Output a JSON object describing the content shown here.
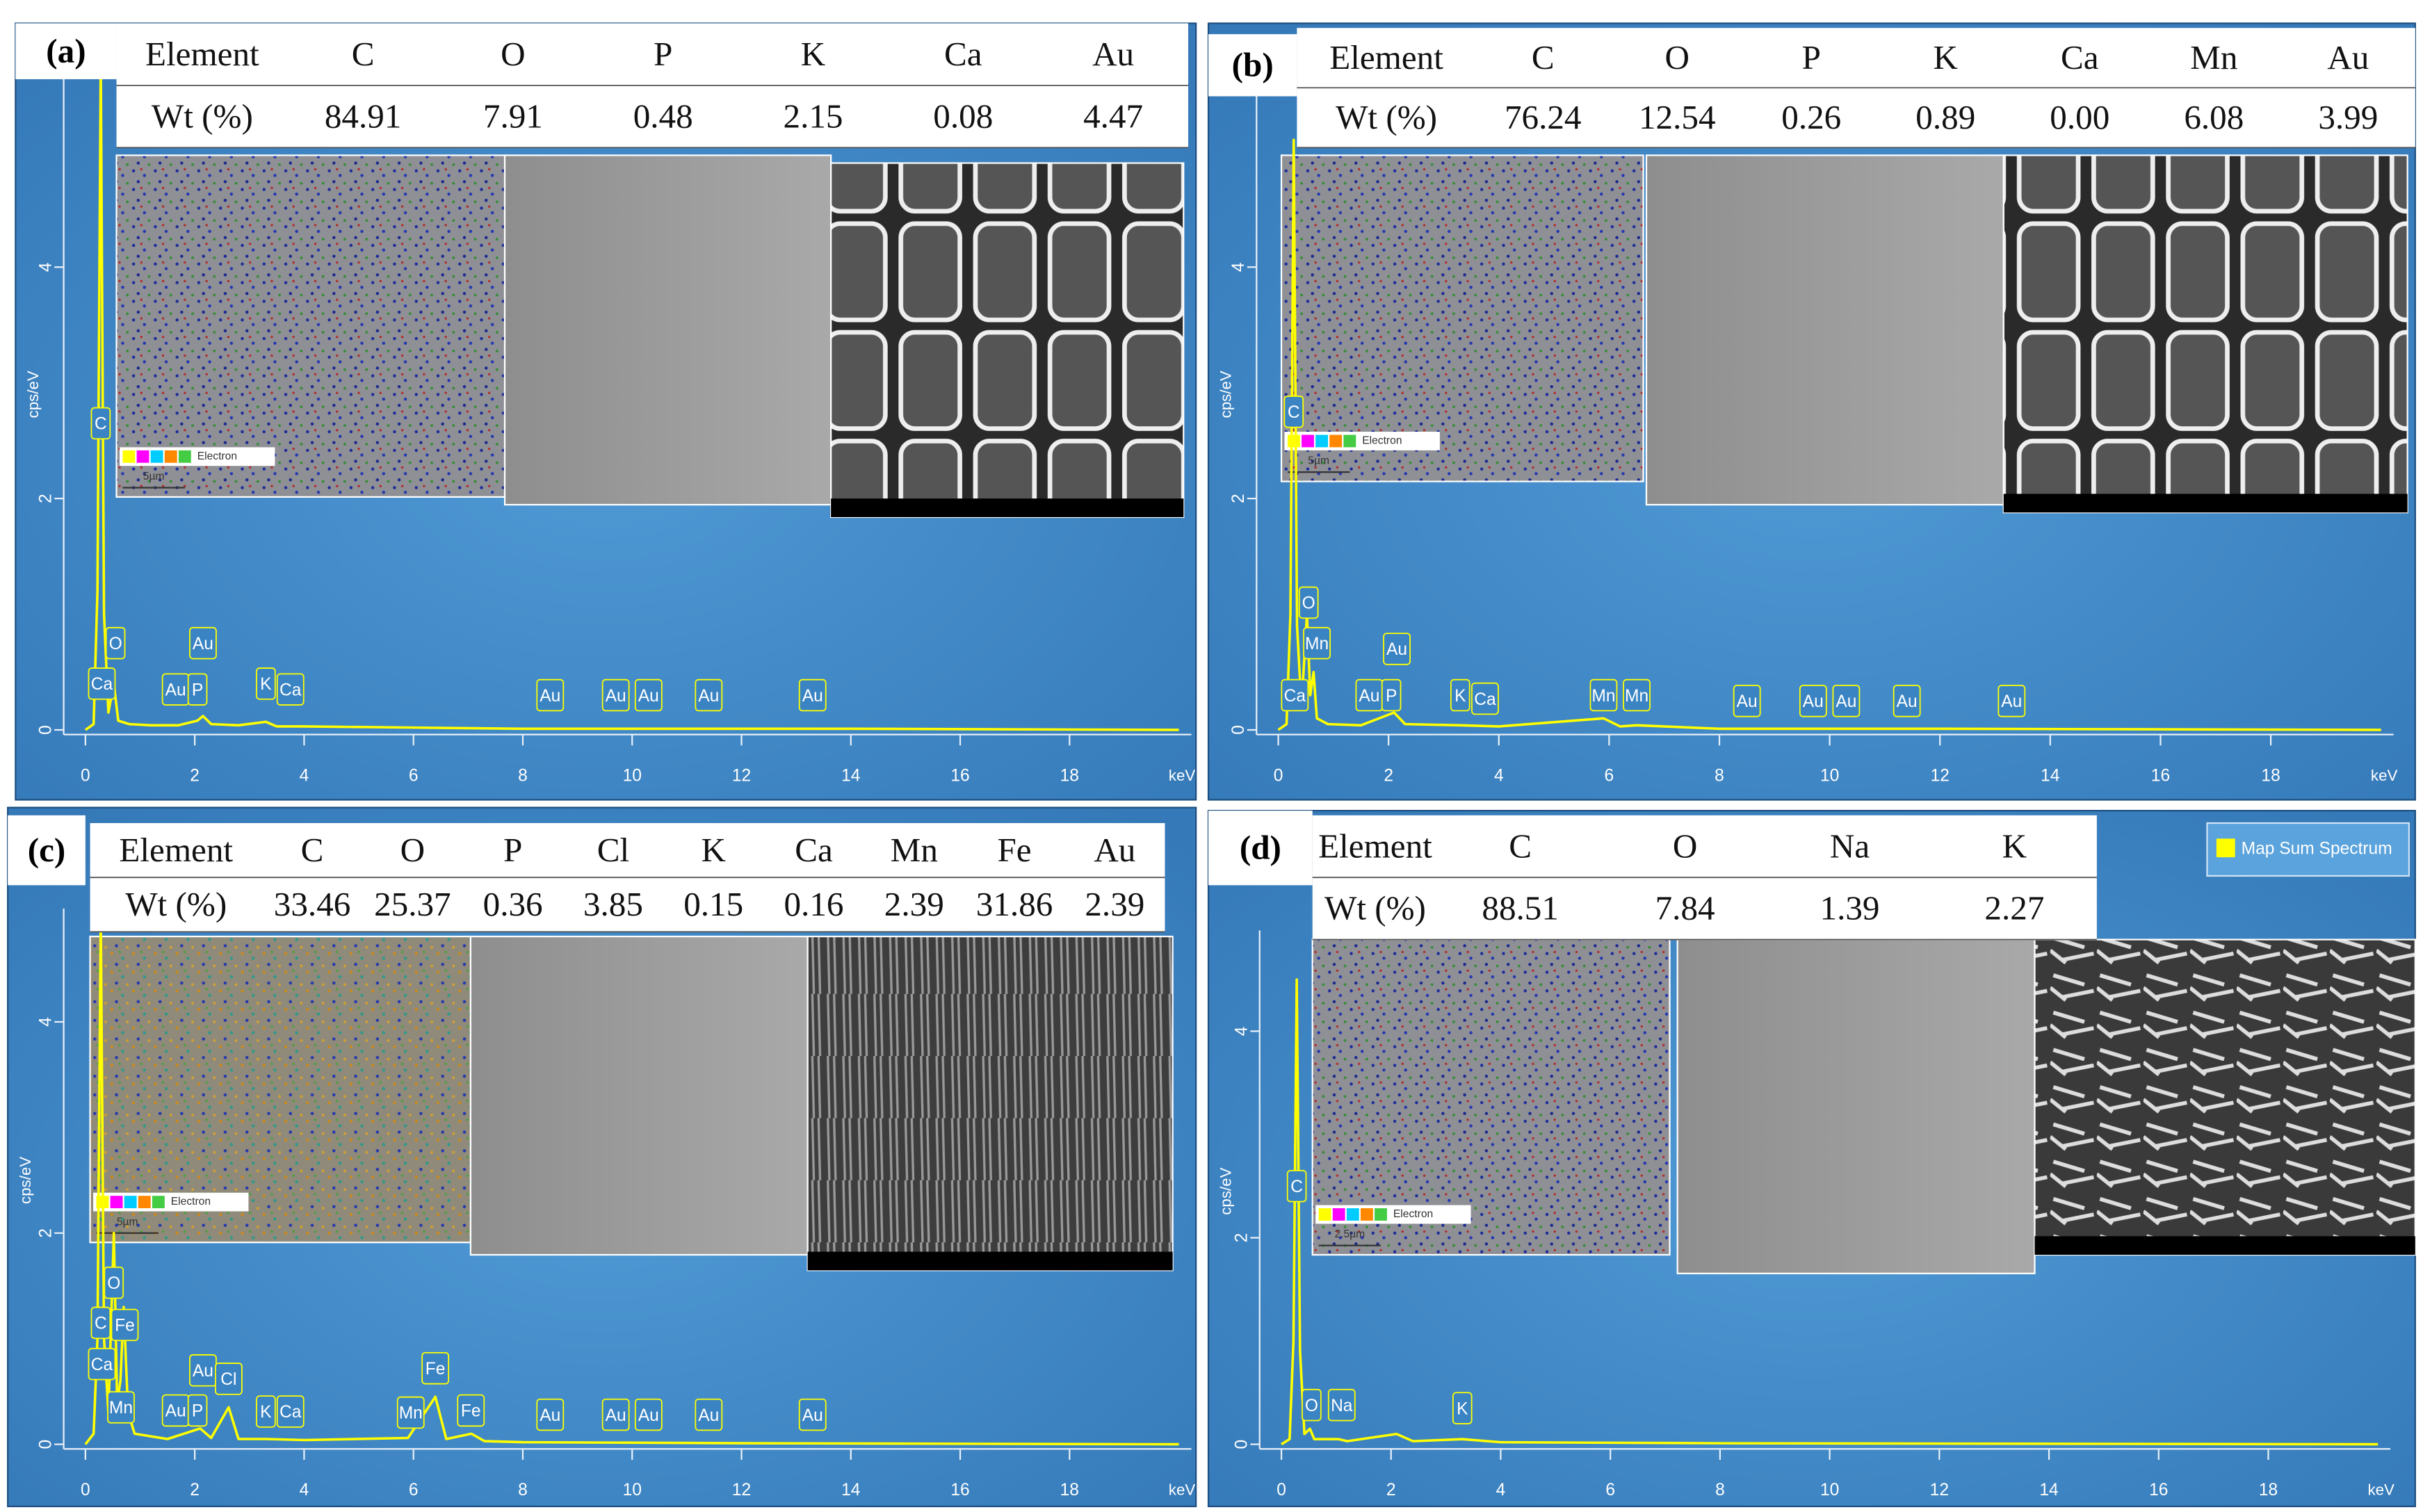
{
  "chart_data": [
    {
      "type": "line",
      "label": "(a)",
      "table": {
        "header": [
          "Element",
          "C",
          "O",
          "P",
          "K",
          "Ca",
          "Au"
        ],
        "row": [
          "Wt (%)",
          "84.91",
          "7.91",
          "0.48",
          "2.15",
          "0.08",
          "4.47"
        ]
      },
      "map_legend": "Electron",
      "scale": "5µm",
      "ylabel": "cps/eV",
      "xlabel": "keV",
      "xlim": [
        0,
        20
      ],
      "ylim": [
        0,
        5.8
      ],
      "xticks": [
        0,
        2,
        4,
        6,
        8,
        10,
        12,
        14,
        16,
        18
      ],
      "yticks": [
        0,
        2,
        4
      ],
      "x": [
        0,
        0.15,
        0.22,
        0.28,
        0.34,
        0.42,
        0.52,
        0.6,
        0.8,
        1.2,
        1.7,
        2.05,
        2.15,
        2.3,
        2.8,
        3.3,
        3.5,
        4,
        6,
        8,
        10,
        14,
        20
      ],
      "series": [
        {
          "color": "#ffff00",
          "values": [
            0,
            0.05,
            1.2,
            5.8,
            1.0,
            0.15,
            0.4,
            0.08,
            0.05,
            0.04,
            0.04,
            0.08,
            0.12,
            0.05,
            0.04,
            0.07,
            0.03,
            0.03,
            0.02,
            0.01,
            0.01,
            0.01,
            0
          ]
        }
      ],
      "annotations": [
        {
          "text": "C",
          "x": 0.28,
          "y": 2.65
        },
        {
          "text": "O",
          "x": 0.55,
          "y": 0.75
        },
        {
          "text": "Ca",
          "x": 0.3,
          "y": 0.4
        },
        {
          "text": "Au",
          "x": 2.15,
          "y": 0.75
        },
        {
          "text": "Au",
          "x": 1.65,
          "y": 0.35
        },
        {
          "text": "P",
          "x": 2.05,
          "y": 0.35
        },
        {
          "text": "K",
          "x": 3.3,
          "y": 0.4
        },
        {
          "text": "Ca",
          "x": 3.75,
          "y": 0.35
        },
        {
          "text": "Au",
          "x": 8.5,
          "y": 0.3
        },
        {
          "text": "Au",
          "x": 9.7,
          "y": 0.3
        },
        {
          "text": "Au",
          "x": 10.3,
          "y": 0.3
        },
        {
          "text": "Au",
          "x": 11.4,
          "y": 0.3
        },
        {
          "text": "Au",
          "x": 13.3,
          "y": 0.3
        }
      ]
    },
    {
      "type": "line",
      "label": "(b)",
      "table": {
        "header": [
          "Element",
          "C",
          "O",
          "P",
          "K",
          "Ca",
          "Mn",
          "Au"
        ],
        "row": [
          "Wt (%)",
          "76.24",
          "12.54",
          "0.26",
          "0.89",
          "0.00",
          "6.08",
          "3.99"
        ]
      },
      "map_legend": "Electron",
      "scale": "5µm",
      "ylabel": "cps/eV",
      "xlabel": "keV",
      "xlim": [
        0,
        20
      ],
      "ylim": [
        0,
        5.8
      ],
      "xticks": [
        0,
        2,
        4,
        6,
        8,
        10,
        12,
        14,
        16,
        18
      ],
      "yticks": [
        0,
        2,
        4
      ],
      "x": [
        0,
        0.15,
        0.22,
        0.28,
        0.34,
        0.42,
        0.52,
        0.58,
        0.64,
        0.7,
        0.9,
        1.5,
        2.1,
        2.3,
        3.3,
        4,
        5.9,
        6.2,
        6.5,
        8,
        12,
        20
      ],
      "series": [
        {
          "color": "#ffff00",
          "values": [
            0,
            0.05,
            1.0,
            5.1,
            0.9,
            0.2,
            1.0,
            0.3,
            0.5,
            0.1,
            0.05,
            0.04,
            0.15,
            0.05,
            0.04,
            0.03,
            0.1,
            0.03,
            0.04,
            0.01,
            0.01,
            0
          ]
        }
      ],
      "annotations": [
        {
          "text": "C",
          "x": 0.28,
          "y": 2.75
        },
        {
          "text": "O",
          "x": 0.55,
          "y": 1.1
        },
        {
          "text": "Mn",
          "x": 0.7,
          "y": 0.75
        },
        {
          "text": "Ca",
          "x": 0.3,
          "y": 0.3
        },
        {
          "text": "Au",
          "x": 2.15,
          "y": 0.7
        },
        {
          "text": "Au",
          "x": 1.65,
          "y": 0.3
        },
        {
          "text": "P",
          "x": 2.05,
          "y": 0.3
        },
        {
          "text": "K",
          "x": 3.3,
          "y": 0.3
        },
        {
          "text": "Ca",
          "x": 3.75,
          "y": 0.27
        },
        {
          "text": "Mn",
          "x": 5.9,
          "y": 0.3
        },
        {
          "text": "Mn",
          "x": 6.5,
          "y": 0.3
        },
        {
          "text": "Au",
          "x": 8.5,
          "y": 0.25
        },
        {
          "text": "Au",
          "x": 9.7,
          "y": 0.25
        },
        {
          "text": "Au",
          "x": 10.3,
          "y": 0.25
        },
        {
          "text": "Au",
          "x": 11.4,
          "y": 0.25
        },
        {
          "text": "Au",
          "x": 13.3,
          "y": 0.25
        }
      ]
    },
    {
      "type": "line",
      "label": "(c)",
      "table": {
        "header": [
          "Element",
          "C",
          "O",
          "P",
          "Cl",
          "K",
          "Ca",
          "Mn",
          "Fe",
          "Au"
        ],
        "row": [
          "Wt (%)",
          "33.46",
          "25.37",
          "0.36",
          "3.85",
          "0.15",
          "0.16",
          "2.39",
          "31.86",
          "2.39"
        ]
      },
      "map_legend": "Electron",
      "scale": "5µm",
      "ylabel": "cps/eV",
      "xlabel": "keV",
      "xlim": [
        0,
        20
      ],
      "ylim": [
        0,
        5
      ],
      "xticks": [
        0,
        2,
        4,
        6,
        8,
        10,
        12,
        14,
        16,
        18
      ],
      "yticks": [
        0,
        2,
        4
      ],
      "x": [
        0,
        0.15,
        0.22,
        0.28,
        0.34,
        0.42,
        0.52,
        0.58,
        0.64,
        0.7,
        0.78,
        0.9,
        1.5,
        2.1,
        2.3,
        2.62,
        2.8,
        3.3,
        4,
        5.9,
        6.4,
        6.6,
        7.06,
        7.3,
        8,
        12,
        20
      ],
      "series": [
        {
          "color": "#ffff00",
          "values": [
            0,
            0.1,
            1.0,
            5.0,
            1.0,
            0.3,
            2.0,
            0.4,
            0.6,
            1.3,
            0.3,
            0.1,
            0.05,
            0.15,
            0.06,
            0.35,
            0.05,
            0.05,
            0.04,
            0.06,
            0.45,
            0.05,
            0.1,
            0.03,
            0.02,
            0.01,
            0
          ]
        }
      ],
      "annotations": [
        {
          "text": "C",
          "x": 0.28,
          "y": 1.15
        },
        {
          "text": "O",
          "x": 0.52,
          "y": 1.53
        },
        {
          "text": "Fe",
          "x": 0.72,
          "y": 1.13
        },
        {
          "text": "Ca",
          "x": 0.3,
          "y": 0.76
        },
        {
          "text": "Mn",
          "x": 0.65,
          "y": 0.35
        },
        {
          "text": "Au",
          "x": 2.15,
          "y": 0.7
        },
        {
          "text": "Au",
          "x": 1.65,
          "y": 0.32
        },
        {
          "text": "P",
          "x": 2.05,
          "y": 0.32
        },
        {
          "text": "Cl",
          "x": 2.62,
          "y": 0.62
        },
        {
          "text": "K",
          "x": 3.3,
          "y": 0.31
        },
        {
          "text": "Ca",
          "x": 3.75,
          "y": 0.31
        },
        {
          "text": "Mn",
          "x": 5.95,
          "y": 0.3
        },
        {
          "text": "Fe",
          "x": 6.4,
          "y": 0.72
        },
        {
          "text": "Fe",
          "x": 7.05,
          "y": 0.32
        },
        {
          "text": "Au",
          "x": 8.5,
          "y": 0.28
        },
        {
          "text": "Au",
          "x": 9.7,
          "y": 0.28
        },
        {
          "text": "Au",
          "x": 10.3,
          "y": 0.28
        },
        {
          "text": "Au",
          "x": 11.4,
          "y": 0.28
        },
        {
          "text": "Au",
          "x": 13.3,
          "y": 0.28
        }
      ]
    },
    {
      "type": "line",
      "label": "(d)",
      "table": {
        "header": [
          "Element",
          "C",
          "O",
          "Na",
          "K"
        ],
        "row": [
          "Wt (%)",
          "88.51",
          "7.84",
          "1.39",
          "2.27"
        ]
      },
      "map_legend": "Electron",
      "scale": "2.5µm",
      "legend": "top-right",
      "ylabel": "cps/eV",
      "xlabel": "keV",
      "xlim": [
        0,
        20
      ],
      "ylim": [
        0,
        4.9
      ],
      "xticks": [
        0,
        2,
        4,
        6,
        8,
        10,
        12,
        14,
        16,
        18
      ],
      "yticks": [
        0,
        2,
        4
      ],
      "x": [
        0,
        0.15,
        0.22,
        0.28,
        0.34,
        0.42,
        0.52,
        0.6,
        1.04,
        1.2,
        2.1,
        2.4,
        3.3,
        4,
        8,
        20
      ],
      "series": [
        {
          "name": "Map Sum Spectrum",
          "color": "#ffff00",
          "values": [
            0,
            0.05,
            1.0,
            4.5,
            0.9,
            0.1,
            0.15,
            0.05,
            0.05,
            0.03,
            0.1,
            0.03,
            0.05,
            0.02,
            0.01,
            0
          ]
        }
      ],
      "annotations": [
        {
          "text": "C",
          "x": 0.28,
          "y": 2.5
        },
        {
          "text": "O",
          "x": 0.55,
          "y": 0.38
        },
        {
          "text": "Na",
          "x": 1.1,
          "y": 0.38
        },
        {
          "text": "K",
          "x": 3.3,
          "y": 0.35
        }
      ]
    }
  ]
}
